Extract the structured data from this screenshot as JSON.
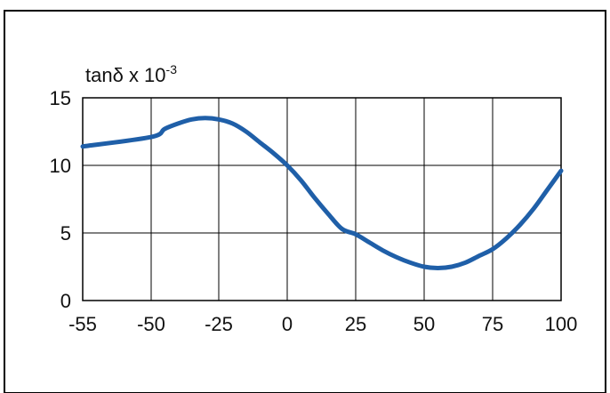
{
  "chart_data": {
    "type": "line",
    "title": "",
    "ylabel_parts": {
      "main": "tanδ x 10",
      "superscript": "-3"
    },
    "xlabel": "",
    "x_ticks": [
      -55,
      -50,
      -25,
      0,
      25,
      50,
      75,
      100
    ],
    "y_ticks": [
      0,
      5,
      10,
      15
    ],
    "xlim": [
      -55,
      100
    ],
    "ylim": [
      0,
      15
    ],
    "grid": true,
    "series": [
      {
        "color": "#1f5fa8",
        "x": [
          -55,
          -50,
          -45,
          -40,
          -35,
          -30,
          -25,
          -20,
          -15,
          -10,
          -5,
          0,
          5,
          10,
          15,
          20,
          25,
          30,
          35,
          40,
          45,
          50,
          55,
          60,
          65,
          70,
          75,
          80,
          85,
          90,
          95,
          100
        ],
        "y": [
          11.4,
          12.1,
          12.7,
          13.1,
          13.4,
          13.5,
          13.4,
          13.1,
          12.5,
          11.7,
          10.9,
          10.0,
          8.9,
          7.6,
          6.4,
          5.3,
          4.9,
          4.3,
          3.7,
          3.2,
          2.8,
          2.5,
          2.4,
          2.5,
          2.8,
          3.3,
          3.8,
          4.6,
          5.6,
          6.8,
          8.2,
          9.6
        ]
      }
    ]
  }
}
